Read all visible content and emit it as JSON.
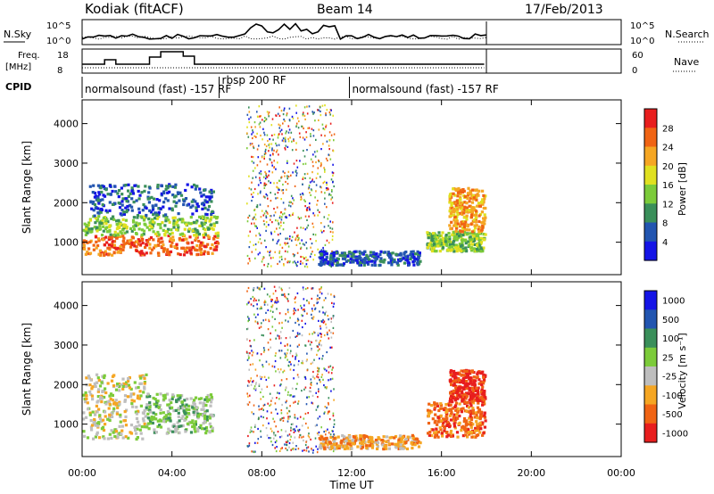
{
  "header": {
    "station": "Kodiak (fitACF)",
    "beam": "Beam 14",
    "date": "17/Feb/2013"
  },
  "panel_labels": {
    "nsky": "N.Sky",
    "freq": "Freq.",
    "freq_unit": "[MHz]",
    "cpid": "CPID",
    "nsearch": "N.Search",
    "nave": "Nave"
  },
  "noise_ticks": {
    "left_top": "10^5",
    "left_bottom": "10^0",
    "right_top": "10^5",
    "right_bottom": "10^0"
  },
  "freq_ticks": {
    "left": [
      "18",
      "8"
    ],
    "right": [
      "60",
      "0"
    ]
  },
  "cpid_labels": [
    {
      "text": "normalsound (fast) -157 RF",
      "start_hour": 0.0
    },
    {
      "text": "rbsp 200 RF",
      "start_hour": 6.1
    },
    {
      "text": "normalsound (fast) -157 RF",
      "start_hour": 11.9
    }
  ],
  "x_axis": {
    "label": "Time UT",
    "ticks": [
      "00:00",
      "04:00",
      "08:00",
      "12:00",
      "16:00",
      "20:00",
      "00:00"
    ],
    "range_hours": [
      0,
      24
    ]
  },
  "y_axis": {
    "label": "Slant Range [km]",
    "ticks": [
      "1000",
      "2000",
      "3000",
      "4000"
    ],
    "range": [
      180,
      4600
    ]
  },
  "colors": {
    "power": [
      "#1414e6",
      "#2255b0",
      "#3a8f5a",
      "#7ccb3a",
      "#e0e020",
      "#f5a623",
      "#f06414",
      "#e81e1e"
    ],
    "velocity": [
      "#e81e1e",
      "#f06414",
      "#f5a623",
      "#bebebe",
      "#7ccb3a",
      "#3a8f5a",
      "#2255b0",
      "#1414e6"
    ]
  },
  "chart_data": [
    {
      "type": "heatmap",
      "name": "power",
      "colorbar": {
        "label": "Power [dB]",
        "ticks": [
          "4",
          "8",
          "12",
          "16",
          "20",
          "24",
          "28"
        ]
      },
      "regions": [
        {
          "t": [
            0.0,
            6.0
          ],
          "r": [
            700,
            1200
          ],
          "level": 6
        },
        {
          "t": [
            0.0,
            6.0
          ],
          "r": [
            1200,
            1700
          ],
          "level": 3
        },
        {
          "t": [
            0.3,
            5.8
          ],
          "r": [
            1700,
            2500
          ],
          "level": 1
        },
        {
          "t": [
            7.3,
            11.2
          ],
          "r": [
            400,
            4500
          ],
          "level": 3
        },
        {
          "t": [
            10.5,
            15.0
          ],
          "r": [
            450,
            800
          ],
          "level": 1
        },
        {
          "t": [
            15.3,
            17.9
          ],
          "r": [
            800,
            1300
          ],
          "level": 3
        },
        {
          "t": [
            16.3,
            17.9
          ],
          "r": [
            1300,
            2400
          ],
          "level": 5
        }
      ]
    },
    {
      "type": "heatmap",
      "name": "velocity",
      "colorbar": {
        "label": "Velocity [m s⁻¹]",
        "ticks": [
          "1000",
          "500",
          "100",
          "25",
          "-25",
          "-100",
          "-500",
          "-1000"
        ]
      },
      "regions": [
        {
          "t": [
            0.0,
            2.8
          ],
          "r": [
            650,
            2300
          ],
          "level": 3
        },
        {
          "t": [
            2.8,
            5.8
          ],
          "r": [
            800,
            1800
          ],
          "level": 4
        },
        {
          "t": [
            7.3,
            11.2
          ],
          "r": [
            300,
            4500
          ],
          "level": 7
        },
        {
          "t": [
            10.5,
            15.0
          ],
          "r": [
            400,
            750
          ],
          "level": 2
        },
        {
          "t": [
            15.3,
            17.9
          ],
          "r": [
            700,
            1600
          ],
          "level": 1
        },
        {
          "t": [
            16.3,
            17.9
          ],
          "r": [
            1600,
            2400
          ],
          "level": 0
        }
      ]
    }
  ]
}
